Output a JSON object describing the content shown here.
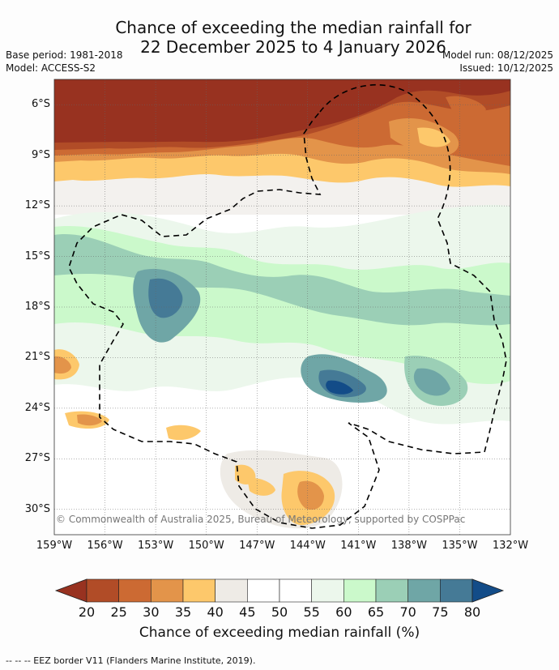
{
  "title": {
    "line1": "Chance of exceeding the median rainfall for",
    "line2": "22 December 2025 to 4 January 2026"
  },
  "meta": {
    "base_period": "Base period: 1981-2018",
    "model": "Model: ACCESS-S2",
    "model_run": "Model run: 08/12/2025",
    "issued": "Issued: 10/12/2025"
  },
  "axes": {
    "lat_ticks": [
      "6°S",
      "9°S",
      "12°S",
      "15°S",
      "18°S",
      "21°S",
      "24°S",
      "27°S",
      "30°S"
    ],
    "lat_values": [
      -6,
      -9,
      -12,
      -15,
      -18,
      -21,
      -24,
      -27,
      -30
    ],
    "lon_ticks": [
      "159°W",
      "156°W",
      "153°W",
      "150°W",
      "147°W",
      "144°W",
      "141°W",
      "138°W",
      "135°W",
      "132°W"
    ],
    "lon_values": [
      -159,
      -156,
      -153,
      -150,
      -147,
      -144,
      -141,
      -138,
      -135,
      -132
    ],
    "lat_range": [
      -31.5,
      -4.5
    ],
    "lon_range": [
      -159,
      -132
    ]
  },
  "copyright": "© Commonwealth of Australia 2025, Bureau of Meteorology, supported by COSPPac",
  "colorbar": {
    "title": "Chance of exceeding median rainfall (%)",
    "ticks": [
      "20",
      "25",
      "30",
      "35",
      "40",
      "45",
      "50",
      "55",
      "60",
      "65",
      "70",
      "75",
      "80"
    ],
    "colors": [
      "#983220",
      "#b14c27",
      "#cc6a33",
      "#e3944a",
      "#fdc86b",
      "#eeebe6",
      "#ffffff",
      "#ffffff",
      "#ecf7ec",
      "#cbf9cb",
      "#9bcfb6",
      "#6fa6a6",
      "#457a96",
      "#134c88"
    ],
    "extend": "both"
  },
  "footer": "-- -- -- EEZ border V11 (Flanders Marine Institute, 2019).",
  "colors": {
    "grid": "#666666",
    "eez": "#000000"
  }
}
